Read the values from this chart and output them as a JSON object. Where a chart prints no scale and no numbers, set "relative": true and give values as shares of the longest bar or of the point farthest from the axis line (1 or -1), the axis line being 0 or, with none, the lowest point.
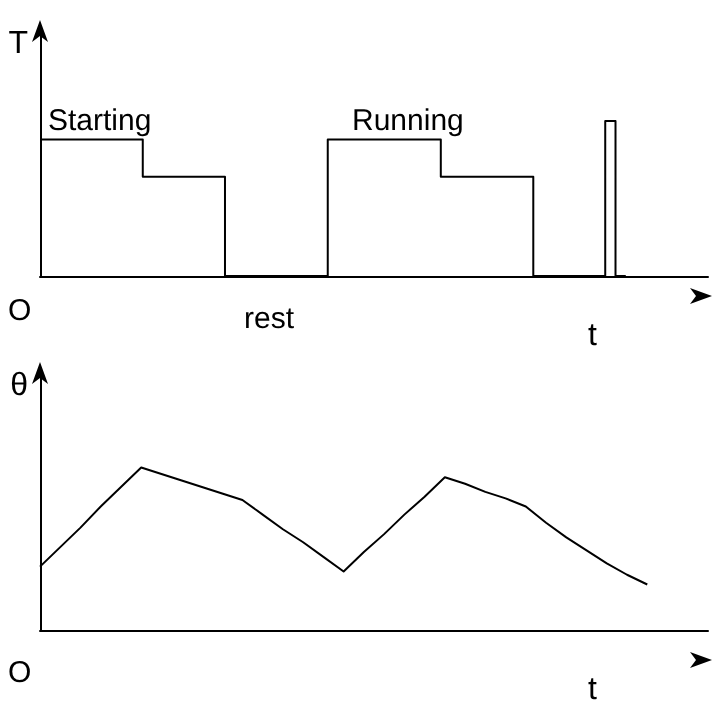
{
  "chart_data": [
    {
      "type": "step",
      "relative": true,
      "ylabel": "T",
      "xlabel": "t",
      "marker": "none",
      "categories": [
        null,
        null,
        null,
        null,
        null,
        null,
        null,
        null,
        null,
        null,
        null,
        null,
        null,
        null,
        null,
        null,
        null,
        null,
        null,
        null,
        null,
        null,
        null,
        null,
        null,
        null,
        null,
        null,
        null,
        null,
        null,
        null,
        null,
        null,
        null,
        null,
        null,
        null,
        null,
        null,
        null,
        null,
        null,
        null,
        null,
        null,
        null,
        null,
        null,
        null,
        null,
        null,
        null,
        null,
        null,
        null,
        null,
        null,
        null,
        null,
        null,
        null,
        null,
        null,
        null,
        null
      ],
      "series": [
        {
          "color": "#000000",
          "values": [
            0.88,
            0.88,
            0.88,
            0.88,
            0.88,
            0.88,
            0.88,
            0.88,
            0.88,
            0.88,
            0.88,
            0.64,
            0.64,
            0.64,
            0.64,
            0.64,
            0.64,
            0.64,
            0.64,
            0,
            0,
            0,
            0,
            0,
            0,
            0,
            0,
            0,
            0,
            0.88,
            0.88,
            0.88,
            0.88,
            0.88,
            0.88,
            0.88,
            0.88,
            0.88,
            0.88,
            0.88,
            0.64,
            0.64,
            0.64,
            0.64,
            0.64,
            0.64,
            0.64,
            0.64,
            0.64,
            0,
            0,
            0,
            0,
            0,
            0,
            0,
            1,
            0,
            null,
            null,
            null,
            null,
            null,
            null,
            null,
            null
          ]
        }
      ],
      "annotations": [
        "O",
        "Starting",
        "Running",
        "rest"
      ]
    },
    {
      "type": "line",
      "relative": true,
      "ylabel": "θ",
      "xlabel": "t",
      "marker": "none",
      "categories": [
        null,
        null,
        null,
        null,
        null,
        null,
        null,
        null,
        null,
        null,
        null,
        null,
        null,
        null,
        null,
        null,
        null,
        null,
        null,
        null,
        null,
        null,
        null,
        null,
        null,
        null,
        null,
        null,
        null,
        null,
        null,
        null,
        null,
        null
      ],
      "series": [
        {
          "color": "#000000",
          "values": [
            0.39,
            0.51,
            0.63,
            0.76,
            0.88,
            1,
            0.96,
            0.92,
            0.88,
            0.84,
            0.8,
            0.71,
            0.62,
            0.54,
            0.45,
            0.36,
            0.48,
            0.59,
            0.71,
            0.82,
            0.94,
            0.9,
            0.85,
            0.81,
            0.76,
            0.66,
            0.57,
            0.49,
            0.41,
            0.34,
            0.28,
            null,
            null,
            null
          ]
        }
      ],
      "annotations": [
        "O"
      ]
    }
  ]
}
